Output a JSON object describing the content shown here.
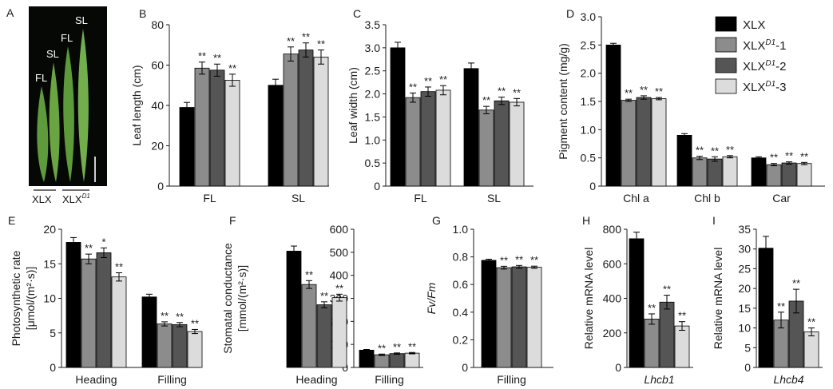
{
  "colors": {
    "s0": "#000000",
    "s1": "#8c8c8c",
    "s2": "#555555",
    "s3": "#dcdcdc"
  },
  "legend": [
    {
      "label": "XLX"
    },
    {
      "label": "XLX",
      "sup": "D1",
      "suffix": "-1"
    },
    {
      "label": "XLX",
      "sup": "D1",
      "suffix": "-2"
    },
    {
      "label": "XLX",
      "sup": "D1",
      "suffix": "-3"
    }
  ],
  "photo": {
    "panel_letter": "A",
    "leaf_labels": [
      "FL",
      "SL",
      "FL",
      "SL"
    ],
    "group_labels": [
      "XLX",
      "XLX"
    ],
    "group_sup": "D1"
  },
  "chart_data": [
    {
      "id": "B",
      "type": "bar",
      "panel_letter": "B",
      "ylabel": "Leaf length (cm)",
      "ylim": [
        0,
        80
      ],
      "yticks": [
        "0",
        "20",
        "40",
        "60",
        "80"
      ],
      "categories": [
        "FL",
        "SL"
      ],
      "values": [
        [
          39,
          58.5,
          57.5,
          52.5
        ],
        [
          50,
          65.5,
          67.5,
          64
        ]
      ],
      "errors": [
        [
          2.5,
          3,
          3,
          3
        ],
        [
          3,
          3.5,
          3.5,
          3.5
        ]
      ],
      "sig": [
        [
          "",
          "**",
          "**",
          "**"
        ],
        [
          "",
          "**",
          "**",
          "**"
        ]
      ]
    },
    {
      "id": "C",
      "type": "bar",
      "panel_letter": "C",
      "ylabel": "Leaf width (cm)",
      "ylim": [
        0,
        3.5
      ],
      "yticks": [
        "0",
        "0.5",
        "1.0",
        "1.5",
        "2.0",
        "2.5",
        "3.0",
        "3.5"
      ],
      "categories": [
        "FL",
        "SL"
      ],
      "values": [
        [
          3.0,
          1.92,
          2.05,
          2.08
        ],
        [
          2.55,
          1.65,
          1.85,
          1.82
        ]
      ],
      "errors": [
        [
          0.12,
          0.1,
          0.1,
          0.1
        ],
        [
          0.12,
          0.08,
          0.08,
          0.08
        ]
      ],
      "sig": [
        [
          "",
          "**",
          "**",
          "**"
        ],
        [
          "",
          "**",
          "**",
          "**"
        ]
      ]
    },
    {
      "id": "D",
      "type": "bar",
      "panel_letter": "D",
      "ylabel": "Pigment content (mg/g)",
      "ylim": [
        0,
        3.0
      ],
      "yticks": [
        "0",
        "0.5",
        "1.0",
        "1.5",
        "2.0",
        "2.5",
        "3.0"
      ],
      "categories": [
        "Chl a",
        "Chl b",
        "Car"
      ],
      "values": [
        [
          2.5,
          1.52,
          1.57,
          1.55
        ],
        [
          0.9,
          0.5,
          0.48,
          0.52
        ],
        [
          0.5,
          0.38,
          0.41,
          0.4
        ]
      ],
      "errors": [
        [
          0.03,
          0.02,
          0.03,
          0.02
        ],
        [
          0.03,
          0.03,
          0.04,
          0.02
        ],
        [
          0.02,
          0.02,
          0.02,
          0.02
        ]
      ],
      "sig": [
        [
          "",
          "**",
          "**",
          "**"
        ],
        [
          "",
          "**",
          "**",
          "**"
        ],
        [
          "",
          "**",
          "**",
          "**"
        ]
      ]
    },
    {
      "id": "E",
      "type": "bar",
      "panel_letter": "E",
      "ylabel": [
        "Photosynthetic rate",
        "[μmol/(m²·s)]"
      ],
      "ylim": [
        0,
        20
      ],
      "yticks": [
        "0",
        "5",
        "10",
        "15",
        "20"
      ],
      "categories": [
        "Heading",
        "Filling"
      ],
      "values": [
        [
          18.1,
          15.7,
          16.6,
          13.1
        ],
        [
          10.2,
          6.3,
          6.2,
          5.2
        ]
      ],
      "errors": [
        [
          0.7,
          0.7,
          0.7,
          0.6
        ],
        [
          0.4,
          0.3,
          0.3,
          0.3
        ]
      ],
      "sig": [
        [
          "",
          "**",
          "*",
          "**"
        ],
        [
          "",
          "**",
          "**",
          "**"
        ]
      ]
    },
    {
      "id": "F",
      "type": "bar",
      "panel_letter": "F",
      "ylabel": [
        "Stomatal conductance",
        "[mmol/(m²·s)]"
      ],
      "ylim": [
        0,
        600
      ],
      "yticks": [
        "0",
        "100",
        "200",
        "300",
        "400",
        "500",
        "600"
      ],
      "categories": [
        "Heading",
        "Filling"
      ],
      "values": [
        [
          505,
          360,
          272,
          303
        ],
        [
          75,
          55,
          60,
          62
        ]
      ],
      "errors": [
        [
          22,
          17,
          13,
          15
        ],
        [
          3,
          3,
          3,
          3
        ]
      ],
      "sig": [
        [
          "",
          "**",
          "**",
          "**"
        ],
        [
          "",
          "**",
          "**",
          "**"
        ]
      ]
    },
    {
      "id": "G",
      "type": "bar",
      "panel_letter": "G",
      "ylabel": "Fv/Fm",
      "ylabel_italic": true,
      "ylim": [
        0,
        1.0
      ],
      "yticks": [
        "0",
        "0.2",
        "0.4",
        "0.6",
        "0.8",
        "1.0"
      ],
      "categories": [
        "Filling"
      ],
      "values": [
        [
          0.775,
          0.722,
          0.728,
          0.725
        ]
      ],
      "errors": [
        [
          0.008,
          0.01,
          0.01,
          0.008
        ]
      ],
      "sig": [
        [
          "",
          "**",
          "**",
          "**"
        ]
      ]
    },
    {
      "id": "H",
      "type": "bar",
      "panel_letter": "H",
      "ylabel": "Relative mRNA level",
      "ylim": [
        0,
        800
      ],
      "yticks": [
        "0",
        "200",
        "400",
        "600",
        "800"
      ],
      "categories": [
        "Lhcb1"
      ],
      "category_italic": true,
      "values": [
        [
          745,
          280,
          378,
          240
        ]
      ],
      "errors": [
        [
          38,
          30,
          40,
          25
        ]
      ],
      "sig": [
        [
          "",
          "**",
          "**",
          "**"
        ]
      ]
    },
    {
      "id": "I",
      "type": "bar",
      "panel_letter": "I",
      "ylabel": "Relative mRNA level",
      "ylim": [
        0,
        35
      ],
      "yticks": [
        "0",
        "5",
        "10",
        "15",
        "20",
        "25",
        "30",
        "35"
      ],
      "categories": [
        "Lhcb4"
      ],
      "category_italic": true,
      "values": [
        [
          30.2,
          12,
          16.8,
          9
        ]
      ],
      "errors": [
        [
          3,
          2,
          3,
          1
        ]
      ],
      "sig": [
        [
          "",
          "**",
          "**",
          "**"
        ]
      ]
    }
  ]
}
